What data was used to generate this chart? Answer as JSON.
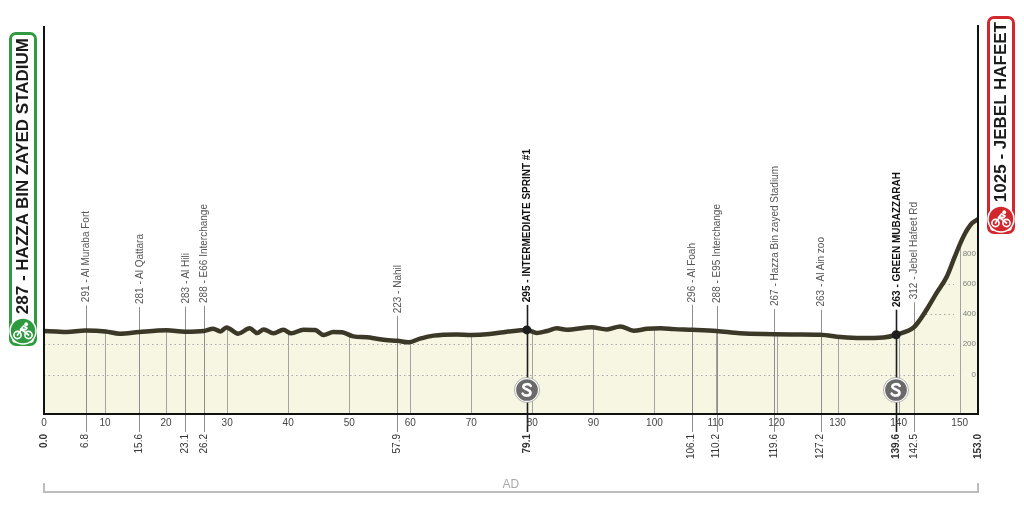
{
  "chart_data": {
    "type": "area",
    "color": "#f6f6e2",
    "x": [
      0,
      2,
      3.7,
      6.8,
      10.1,
      12.4,
      15.6,
      20.1,
      23.1,
      26.2,
      27.7,
      28.9,
      29.9,
      31.8,
      33.7,
      34.9,
      36,
      37.6,
      39.2,
      40.5,
      42.5,
      44.4,
      45.8,
      47.4,
      48.8,
      50.7,
      52.9,
      54.5,
      56,
      57.9,
      59.7,
      61.6,
      63.8,
      67.6,
      70,
      73,
      75.8,
      79.1,
      80.7,
      82.4,
      84,
      85.6,
      89.7,
      92.2,
      94.4,
      96.6,
      98.8,
      101,
      103.2,
      106.1,
      110.2,
      114,
      119.6,
      123,
      127.2,
      130.5,
      133.8,
      137.5,
      139.6,
      142.5,
      143.5,
      144.9,
      146.2,
      147.9,
      149.2,
      150.6,
      152,
      153
    ],
    "values": [
      287,
      284,
      281,
      291,
      285,
      270,
      281,
      292,
      283,
      288,
      303,
      285,
      311,
      270,
      305,
      274,
      298,
      272,
      296,
      272,
      296,
      294,
      261,
      281,
      279,
      252,
      246,
      237,
      228,
      223,
      213,
      237,
      257,
      265,
      262,
      268,
      283,
      295,
      275,
      288,
      305,
      296,
      312,
      298,
      318,
      290,
      302,
      306,
      300,
      296,
      288,
      272,
      267,
      265,
      263,
      248,
      241,
      245,
      263,
      312,
      362,
      449,
      537,
      647,
      778,
      910,
      998,
      1025
    ],
    "xlim": [
      0,
      153
    ],
    "xticks": [
      0,
      10,
      20,
      30,
      40,
      50,
      60,
      70,
      80,
      90,
      100,
      110,
      120,
      130,
      140,
      150
    ],
    "x2lim": [
      0,
      153
    ],
    "x2ticks": [
      {
        "value": 0,
        "label": "0.0"
      },
      6.8,
      15.6,
      23.1,
      26.2,
      57.9,
      79.1,
      106.1,
      110.2,
      119.6,
      127.2,
      139.6,
      142.5,
      {
        "value": 153,
        "label": "153.0"
      }
    ],
    "ylim": [
      -260,
      2300
    ],
    "yticks": [
      0,
      200,
      400,
      600,
      800
    ],
    "grid": true,
    "bands": [
      {
        "axis": "y",
        "from": -260,
        "to": 0,
        "color": "#f6f6e2"
      }
    ],
    "ref_lines": [
      {
        "axis": "x",
        "value": 6.8,
        "label": "291 - Al Muraba Fort"
      },
      {
        "axis": "x",
        "value": 15.6,
        "label": "281 - Al Qattara"
      },
      {
        "axis": "x",
        "value": 23.1,
        "label": "283 - Al Hili"
      },
      {
        "axis": "x",
        "value": 26.2,
        "label": "288 - E66 Interchange"
      },
      {
        "axis": "x",
        "value": 57.9,
        "label": "223 - Nahil"
      },
      {
        "axis": "x",
        "value": 79.1,
        "label": "295 - INTERMEDIATE SPRINT #1",
        "color": "#1e1e1e"
      },
      {
        "axis": "x",
        "value": 106.1,
        "label": "296 - Al Foah"
      },
      {
        "axis": "x",
        "value": 110.2,
        "label": "288 - E95 Interchange"
      },
      {
        "axis": "x",
        "value": 119.6,
        "label": "267 - Hazza Bin zayed Stadium"
      },
      {
        "axis": "x",
        "value": 127.2,
        "label": "263 - Al Ain zoo"
      },
      {
        "axis": "x",
        "value": 139.6,
        "label": "263 - GREEN MUBAZZARAH",
        "color": "#1e1e1e"
      },
      {
        "axis": "x",
        "value": 142.5,
        "label": "312 - Jebel Hafeet Rd"
      }
    ],
    "annotations": [
      {
        "text": "287 - HAZZA BIN ZAYED STADIUM",
        "x": 0,
        "y": 287
      },
      {
        "text": "1025 - JEBEL HAFEET",
        "x": 153,
        "y": 1025
      },
      "AD"
    ]
  }
}
